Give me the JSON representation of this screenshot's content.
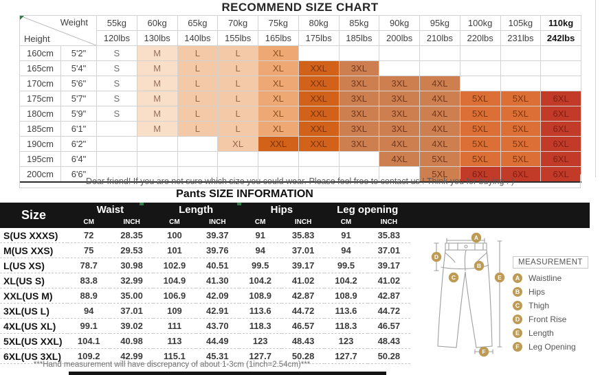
{
  "top_chart": {
    "title": "RECOMMEND SIZE CHART",
    "corner": {
      "weight_label": "Weight",
      "height_label": "Height"
    },
    "weights": [
      {
        "kg": "55kg",
        "lbs": "120lbs",
        "bold": false
      },
      {
        "kg": "60kg",
        "lbs": "130lbs",
        "bold": false
      },
      {
        "kg": "65kg",
        "lbs": "140lbs",
        "bold": false
      },
      {
        "kg": "70kg",
        "lbs": "155lbs",
        "bold": false
      },
      {
        "kg": "75kg",
        "lbs": "165lbs",
        "bold": false
      },
      {
        "kg": "80kg",
        "lbs": "175lbs",
        "bold": false
      },
      {
        "kg": "85kg",
        "lbs": "185lbs",
        "bold": false
      },
      {
        "kg": "90kg",
        "lbs": "200lbs",
        "bold": false
      },
      {
        "kg": "95kg",
        "lbs": "210lbs",
        "bold": false
      },
      {
        "kg": "100kg",
        "lbs": "220lbs",
        "bold": false
      },
      {
        "kg": "105kg",
        "lbs": "231lbs",
        "bold": false
      },
      {
        "kg": "110kg",
        "lbs": "242lbs",
        "bold": true
      }
    ],
    "rows": [
      {
        "cm": "160cm",
        "ft": "5'2\"",
        "cells": [
          {
            "t": "S",
            "c": "p0"
          },
          {
            "t": "M",
            "c": "p1"
          },
          {
            "t": "L",
            "c": "p2"
          },
          {
            "t": "L",
            "c": "p2"
          },
          {
            "t": "XL",
            "c": "p3"
          },
          {},
          {},
          {},
          {},
          {},
          {},
          {}
        ]
      },
      {
        "cm": "165cm",
        "ft": "5'4\"",
        "cells": [
          {
            "t": "S",
            "c": "p0"
          },
          {
            "t": "M",
            "c": "p1"
          },
          {
            "t": "L",
            "c": "p2"
          },
          {
            "t": "L",
            "c": "p2"
          },
          {
            "t": "XL",
            "c": "p3"
          },
          {
            "t": "XXL",
            "c": "p4"
          },
          {
            "t": "3XL",
            "c": "p5"
          },
          {},
          {},
          {},
          {},
          {}
        ]
      },
      {
        "cm": "170cm",
        "ft": "5'6\"",
        "cells": [
          {
            "t": "S",
            "c": "p0"
          },
          {
            "t": "M",
            "c": "p1"
          },
          {
            "t": "L",
            "c": "p2"
          },
          {
            "t": "L",
            "c": "p2"
          },
          {
            "t": "XL",
            "c": "p3"
          },
          {
            "t": "XXL",
            "c": "p4"
          },
          {
            "t": "3XL",
            "c": "p5"
          },
          {
            "t": "3XL",
            "c": "p5"
          },
          {
            "t": "4XL",
            "c": "p5"
          },
          {},
          {},
          {}
        ]
      },
      {
        "cm": "175cm",
        "ft": "5'7\"",
        "cells": [
          {
            "t": "S",
            "c": "p0"
          },
          {
            "t": "M",
            "c": "p1"
          },
          {
            "t": "L",
            "c": "p2"
          },
          {
            "t": "L",
            "c": "p2"
          },
          {
            "t": "XL",
            "c": "p3"
          },
          {
            "t": "XXL",
            "c": "p4"
          },
          {
            "t": "3XL",
            "c": "p5"
          },
          {
            "t": "3XL",
            "c": "p5"
          },
          {
            "t": "4XL",
            "c": "p5"
          },
          {
            "t": "5XL",
            "c": "p6"
          },
          {
            "t": "5XL",
            "c": "p6"
          },
          {
            "t": "6XL",
            "c": "p7"
          }
        ]
      },
      {
        "cm": "180cm",
        "ft": "5'9\"",
        "cells": [
          {
            "t": "S",
            "c": "p0"
          },
          {
            "t": "M",
            "c": "p1"
          },
          {
            "t": "L",
            "c": "p2"
          },
          {
            "t": "L",
            "c": "p2"
          },
          {
            "t": "XL",
            "c": "p3"
          },
          {
            "t": "XXL",
            "c": "p4"
          },
          {
            "t": "3XL",
            "c": "p5"
          },
          {
            "t": "3XL",
            "c": "p5"
          },
          {
            "t": "4XL",
            "c": "p5"
          },
          {
            "t": "5XL",
            "c": "p6"
          },
          {
            "t": "5XL",
            "c": "p6"
          },
          {
            "t": "6XL",
            "c": "p7"
          }
        ]
      },
      {
        "cm": "185cm",
        "ft": "6'1\"",
        "cells": [
          {},
          {
            "t": "M",
            "c": "p1"
          },
          {
            "t": "L",
            "c": "p2"
          },
          {
            "t": "L",
            "c": "p2"
          },
          {
            "t": "XL",
            "c": "p3"
          },
          {
            "t": "XXL",
            "c": "p4"
          },
          {
            "t": "3XL",
            "c": "p5"
          },
          {
            "t": "3XL",
            "c": "p5"
          },
          {
            "t": "4XL",
            "c": "p5"
          },
          {
            "t": "5XL",
            "c": "p6"
          },
          {
            "t": "5XL",
            "c": "p6"
          },
          {
            "t": "6XL",
            "c": "p7"
          }
        ]
      },
      {
        "cm": "190cm",
        "ft": "6'2\"",
        "cells": [
          {},
          {},
          {},
          {
            "t": "XL",
            "c": "p2"
          },
          {
            "t": "XXL",
            "c": "p4"
          },
          {
            "t": "XXL",
            "c": "p4"
          },
          {
            "t": "3XL",
            "c": "p5"
          },
          {
            "t": "4XL",
            "c": "p5"
          },
          {
            "t": "4XL",
            "c": "p5"
          },
          {
            "t": "5XL",
            "c": "p6"
          },
          {
            "t": "5XL",
            "c": "p6"
          },
          {
            "t": "6XL",
            "c": "p7"
          }
        ]
      },
      {
        "cm": "195cm",
        "ft": "6'4\"",
        "cells": [
          {},
          {},
          {},
          {},
          {},
          {},
          {},
          {
            "t": "4XL",
            "c": "p5"
          },
          {
            "t": "5XL",
            "c": "p5"
          },
          {
            "t": "5XL",
            "c": "p6"
          },
          {
            "t": "5XL",
            "c": "p6"
          },
          {
            "t": "6XL",
            "c": "p7"
          }
        ]
      },
      {
        "cm": "200cm",
        "ft": "6'6\"",
        "cells": [
          {},
          {},
          {},
          {},
          {},
          {},
          {},
          {},
          {
            "t": "5XL",
            "c": "p5"
          },
          {
            "t": "6XL",
            "c": "p7"
          },
          {
            "t": "6XL",
            "c": "p7"
          },
          {
            "t": "6XL",
            "c": "p7"
          }
        ]
      }
    ],
    "note": "Dear friend! If you are not sure which size you could wear. Please feel free to contact us ! Think you for buying : )"
  },
  "info_table": {
    "title": "Pants SIZE INFORMATION",
    "size_header": "Size",
    "groups": [
      "Waist",
      "Length",
      "Hips",
      "Leg opening"
    ],
    "unit_cm": "CM",
    "unit_inch": "INCH",
    "rows": [
      {
        "size": "S(US XXXS)",
        "values": [
          "72",
          "28.35",
          "100",
          "39.37",
          "91",
          "35.83",
          "91",
          "35.83"
        ]
      },
      {
        "size": "M(US XXS)",
        "values": [
          "75",
          "29.53",
          "101",
          "39.76",
          "94",
          "37.01",
          "94",
          "37.01"
        ]
      },
      {
        "size": "L(US XS)",
        "values": [
          "78.7",
          "30.98",
          "102.9",
          "40.51",
          "99.5",
          "39.17",
          "99.5",
          "39.17"
        ]
      },
      {
        "size": "XL(US S)",
        "values": [
          "83.8",
          "32.99",
          "104.9",
          "41.30",
          "104.2",
          "41.02",
          "104.2",
          "41.02"
        ]
      },
      {
        "size": "XXL(US M)",
        "values": [
          "88.9",
          "35.00",
          "106.9",
          "42.09",
          "108.9",
          "42.87",
          "108.9",
          "42.87"
        ]
      },
      {
        "size": "3XL(US L)",
        "values": [
          "94",
          "37.01",
          "109",
          "42.91",
          "113.6",
          "44.72",
          "113.6",
          "44.72"
        ]
      },
      {
        "size": "4XL(US XL)",
        "values": [
          "99.1",
          "39.02",
          "111",
          "43.70",
          "118.3",
          "46.57",
          "118.3",
          "46.57"
        ]
      },
      {
        "size": "5XL(US XXL)",
        "values": [
          "104.1",
          "40.98",
          "113",
          "44.49",
          "123",
          "48.43",
          "123",
          "48.43"
        ]
      },
      {
        "size": "6XL(US 3XL)",
        "values": [
          "109.2",
          "42.99",
          "115.1",
          "45.31",
          "127.7",
          "50.28",
          "127.7",
          "50.28"
        ]
      }
    ],
    "footnote": "***Hand measurement will have discrepancy of about 1-3cm (1inch=2.54cm)***"
  },
  "diagram": {
    "legend_title": "MEASUREMENT",
    "items": [
      {
        "letter": "A",
        "label": "Waistline"
      },
      {
        "letter": "B",
        "label": "Hips"
      },
      {
        "letter": "C",
        "label": "Thigh"
      },
      {
        "letter": "D",
        "label": "Front Rise"
      },
      {
        "letter": "E",
        "label": "Length"
      },
      {
        "letter": "F",
        "label": "Leg Opening"
      }
    ]
  },
  "colors": {
    "header_bg": "#151515",
    "badge_gold": "#bd9b55",
    "palette": {
      "p1": "#f9dfc8",
      "p2": "#f4c9a7",
      "p3": "#eda873",
      "p4": "#d2621a",
      "p5": "#cd7f50",
      "p6": "#dc6f35",
      "p7": "#c23a28"
    }
  }
}
